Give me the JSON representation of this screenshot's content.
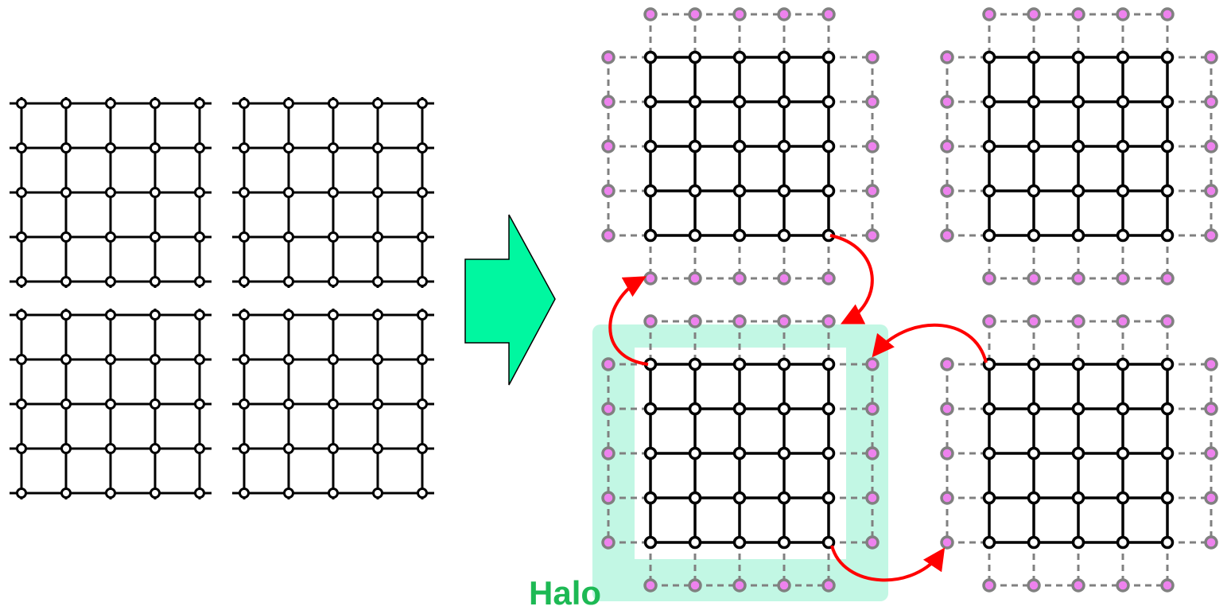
{
  "halo": {
    "label": "Halo"
  },
  "colors": {
    "grid_line": "#000000",
    "ghost_line": "#808080",
    "ghost_fill": "#ee82ee",
    "halo_fill": "#c2f7e4",
    "halo_label": "#1db954",
    "arrow_fill": "#00f7a0",
    "exchange_arrow": "#ff0000"
  },
  "diagram": {
    "left_mesh": {
      "blocks": 4,
      "nodes_per_row": 5,
      "rows_per_block": 5
    },
    "partitions": {
      "count": 4,
      "owned_nodes_per_side": 5,
      "ghost_layer_width": 1
    },
    "transition_arrow": {
      "icon": "right-arrow-icon"
    },
    "exchanges": [
      {
        "id": "top-to-bottom",
        "icon": "curved-arrow-icon"
      },
      {
        "id": "bottom-to-top",
        "icon": "curved-arrow-icon"
      },
      {
        "id": "right-to-left",
        "icon": "curved-arrow-icon"
      },
      {
        "id": "left-to-right",
        "icon": "curved-arrow-icon"
      }
    ]
  }
}
